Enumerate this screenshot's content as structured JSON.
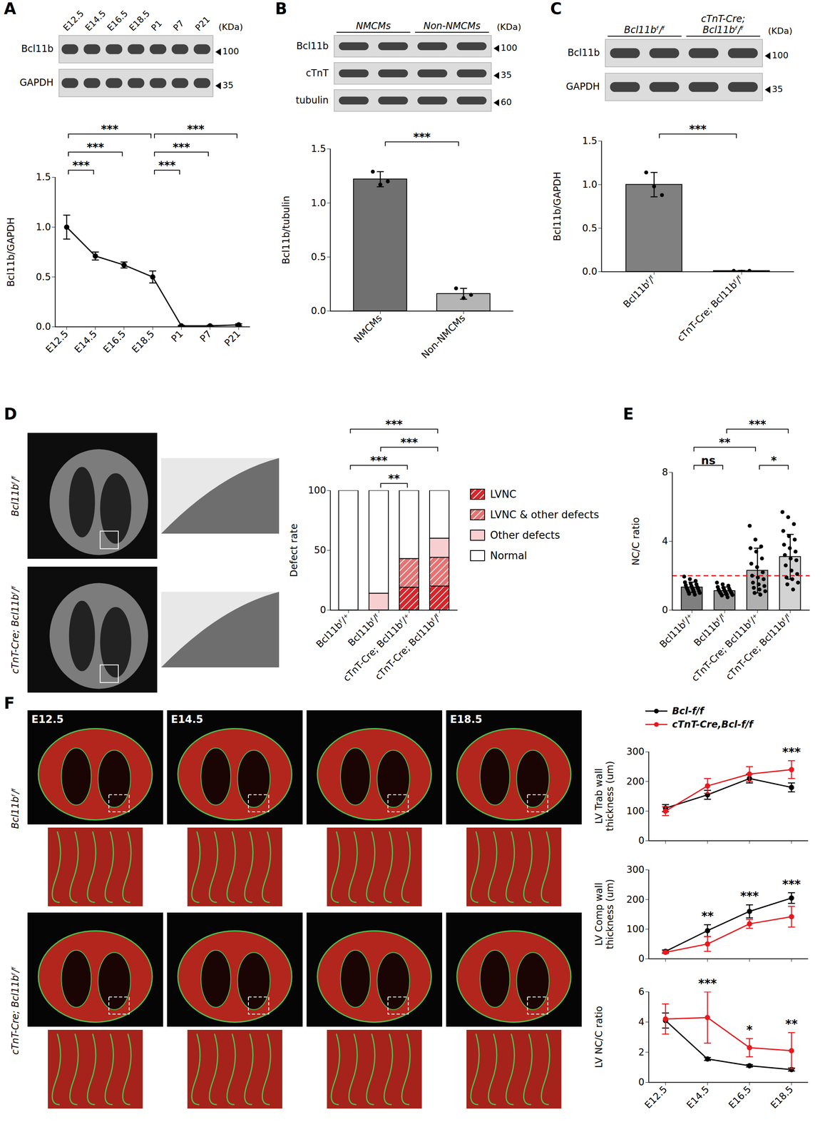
{
  "chart_data": [
    {
      "panel": "A",
      "type": "line",
      "categories": [
        "E12.5",
        "E14.5",
        "E16.5",
        "E18.5",
        "P1",
        "P7",
        "P21"
      ],
      "values": [
        1.0,
        0.71,
        0.62,
        0.5,
        0.01,
        0.01,
        0.02
      ],
      "error": [
        0.12,
        0.04,
        0.03,
        0.06,
        0.005,
        0.005,
        0.01
      ],
      "color": "#000000",
      "marker": "circle",
      "ylabel": "Bcl11b/GAPDH",
      "ylim": [
        0,
        1.5
      ],
      "yticks": [
        {
          "value": 0,
          "label": "0.0"
        },
        {
          "value": 0.5,
          "label": "0.5"
        },
        {
          "value": 1.0,
          "label": "1.0"
        },
        {
          "value": 1.5,
          "label": "1.5"
        }
      ],
      "significance": [
        {
          "from": "E12.5",
          "to": "E14.5",
          "label": "***"
        },
        {
          "from": "E12.5",
          "to": "E16.5",
          "label": "***"
        },
        {
          "from": "E12.5",
          "to": "E18.5",
          "label": "***"
        },
        {
          "from": "E18.5",
          "to": "P1",
          "label": "***"
        },
        {
          "from": "E18.5",
          "to": "P7",
          "label": "***"
        },
        {
          "from": "E18.5",
          "to": "P21",
          "label": "***"
        }
      ]
    },
    {
      "panel": "B",
      "type": "bar",
      "categories": [
        "NMCMs",
        "Non-NMCMs"
      ],
      "values": [
        1.22,
        0.16
      ],
      "error": [
        0.07,
        0.05
      ],
      "points": [
        [
          1.29,
          1.17,
          1.2
        ],
        [
          0.21,
          0.12,
          0.15
        ]
      ],
      "colors": [
        "#707070",
        "#b5b5b5"
      ],
      "ylabel": "Bcl11b/tubulin",
      "ylim": [
        0,
        1.5
      ],
      "yticks": [
        {
          "value": 0,
          "label": "0.0"
        },
        {
          "value": 0.5,
          "label": "0.5"
        },
        {
          "value": 1.0,
          "label": "1.0"
        },
        {
          "value": 1.5,
          "label": "1.5"
        }
      ],
      "significance": [
        {
          "from": "NMCMs",
          "to": "Non-NMCMs",
          "label": "***"
        }
      ]
    },
    {
      "panel": "C",
      "type": "bar",
      "categories": [
        "Bcl11bᶠ/ᶠ",
        "cTnT-Cre; Bcl11bᶠ/ᶠ"
      ],
      "values": [
        1.0,
        0.01
      ],
      "error": [
        0.14,
        0.005
      ],
      "points": [
        [
          1.14,
          0.98,
          0.88
        ],
        [
          0.01,
          0.0,
          0.01
        ]
      ],
      "colors": [
        "#808080",
        "#808080"
      ],
      "ylabel": "Bcl11b/GAPDH",
      "ylim": [
        0,
        1.5
      ],
      "yticks": [
        {
          "value": 0,
          "label": "0.0"
        },
        {
          "value": 0.5,
          "label": "0.5"
        },
        {
          "value": 1.0,
          "label": "1.0"
        },
        {
          "value": 1.5,
          "label": "1.5"
        }
      ],
      "significance": [
        {
          "from": "Bcl11bᶠ/ᶠ",
          "to": "cTnT-Cre; Bcl11bᶠ/ᶠ",
          "label": "***"
        }
      ]
    },
    {
      "panel": "D",
      "type": "bar",
      "stacked": true,
      "legend": "right",
      "categories": [
        "Bcl11bᶠ/⁺",
        "Bcl11bᶠ/ᶠ",
        "cTnT-Cre; Bcl11bᶠ/⁺",
        "cTnT-Cre; Bcl11bᶠ/ᶠ"
      ],
      "series": [
        {
          "name": "LVNC",
          "color": "#d7262b",
          "marker": "hatch",
          "values": [
            0,
            0,
            19,
            20
          ]
        },
        {
          "name": "LVNC & other defects",
          "color": "#e57373",
          "marker": "hatch",
          "values": [
            0,
            0,
            24,
            24
          ]
        },
        {
          "name": "Other defects",
          "color": "#f8cfd1",
          "values": [
            0,
            14,
            0,
            16
          ]
        },
        {
          "name": "Normal",
          "color": "#ffffff",
          "values": [
            100,
            86,
            57,
            40
          ]
        }
      ],
      "ylabel": "Defect rate",
      "ylim": [
        0,
        100
      ],
      "yticks": [
        0,
        50,
        100
      ],
      "significance": [
        {
          "from": "Bcl11bᶠ/⁺",
          "to": "cTnT-Cre; Bcl11bᶠ/⁺",
          "label": "***"
        },
        {
          "from": "Bcl11bᶠ/⁺",
          "to": "cTnT-Cre; Bcl11bᶠ/ᶠ",
          "label": "***"
        },
        {
          "from": "Bcl11bᶠ/ᶠ",
          "to": "cTnT-Cre; Bcl11bᶠ/⁺",
          "label": "**"
        },
        {
          "from": "Bcl11bᶠ/ᶠ",
          "to": "cTnT-Cre; Bcl11bᶠ/ᶠ",
          "label": "***"
        }
      ]
    },
    {
      "panel": "E",
      "type": "bar",
      "categories": [
        "Bcl11bᶠ/⁺",
        "Bcl11bᶠ/ᶠ",
        "cTnT-Cre; Bcl11bᶠ/⁺",
        "cTnT-Cre; Bcl11bᶠ/ᶠ"
      ],
      "values": [
        1.33,
        1.12,
        2.3,
        3.1
      ],
      "error": [
        0.3,
        0.22,
        1.3,
        1.3
      ],
      "points": [
        [
          1.95,
          1.8,
          1.7,
          1.62,
          1.55,
          1.5,
          1.45,
          1.4,
          1.35,
          1.3,
          1.28,
          1.25,
          1.2,
          1.18,
          1.12,
          1.08,
          1.05,
          1.0,
          0.95,
          0.9
        ],
        [
          1.6,
          1.5,
          1.42,
          1.35,
          1.3,
          1.25,
          1.2,
          1.18,
          1.15,
          1.1,
          1.08,
          1.05,
          1.02,
          1.0,
          0.98,
          0.95,
          0.9,
          0.88,
          0.85,
          0.75
        ],
        [
          4.9,
          4.1,
          3.7,
          3.6,
          3.4,
          3.0,
          2.7,
          2.5,
          2.2,
          2.0,
          1.9,
          1.8,
          1.6,
          1.5,
          1.4,
          1.3,
          1.2,
          1.1,
          1.0,
          0.9
        ],
        [
          5.7,
          5.4,
          5.0,
          4.6,
          4.3,
          4.1,
          3.8,
          3.6,
          3.4,
          3.2,
          3.0,
          2.9,
          2.6,
          2.3,
          2.1,
          1.9,
          1.8,
          1.6,
          1.5,
          1.2
        ]
      ],
      "colors": [
        "#7f7f7f",
        "#999999",
        "#b0b0b0",
        "#d3d3d3"
      ],
      "threshold": {
        "value": 2,
        "color": "#e41a1c",
        "line_style": "dashed"
      },
      "ylabel": "NC/C ratio",
      "ylim": [
        0,
        8
      ],
      "yticks": [
        0,
        4,
        8
      ],
      "significance": [
        {
          "from": "Bcl11bᶠ/⁺",
          "to": "Bcl11bᶠ/ᶠ",
          "label": "ns"
        },
        {
          "from": "Bcl11bᶠ/⁺",
          "to": "cTnT-Cre; Bcl11bᶠ/⁺",
          "label": "**"
        },
        {
          "from": "cTnT-Cre; Bcl11bᶠ/⁺",
          "to": "cTnT-Cre; Bcl11bᶠ/ᶠ",
          "label": "*"
        },
        {
          "from": "Bcl11bᶠ/ᶠ",
          "to": "cTnT-Cre; Bcl11bᶠ/ᶠ",
          "label": "***"
        }
      ]
    },
    {
      "panel": "F",
      "type": "line",
      "legend": "top",
      "tick_labels": "y",
      "categories": [
        "E12.5",
        "E14.5",
        "E16.5",
        "E18.5"
      ],
      "series": [
        {
          "name": "Bcl-f/f",
          "color": "#000000",
          "marker": "circle",
          "values": [
            110,
            155,
            210,
            180
          ],
          "error": [
            12,
            15,
            15,
            15
          ]
        },
        {
          "name": "cTnT-Cre,Bcl-f/f",
          "color": "#e8191e",
          "marker": "circle",
          "values": [
            100,
            185,
            225,
            240
          ],
          "error": [
            15,
            25,
            25,
            30
          ]
        }
      ],
      "ylabel": "LV Trab wall thickness (um)",
      "ylim": [
        0,
        300
      ],
      "yticks": [
        0,
        100,
        200,
        300
      ],
      "significance": [
        {
          "category": "E18.5",
          "label": "***"
        }
      ]
    },
    {
      "type": "line",
      "tick_labels": "y",
      "categories": [
        "E12.5",
        "E14.5",
        "E16.5",
        "E18.5"
      ],
      "series": [
        {
          "name": "Bcl-f/f",
          "color": "#000000",
          "marker": "circle",
          "values": [
            25,
            95,
            160,
            205
          ],
          "error": [
            5,
            20,
            22,
            18
          ]
        },
        {
          "name": "cTnT-Cre,Bcl-f/f",
          "color": "#e8191e",
          "marker": "circle",
          "values": [
            22,
            50,
            118,
            142
          ],
          "error": [
            4,
            25,
            15,
            35
          ]
        }
      ],
      "ylabel": "LV Comp wall thickness (um)",
      "ylim": [
        0,
        300
      ],
      "yticks": [
        0,
        100,
        200,
        300
      ],
      "significance": [
        {
          "category": "E14.5",
          "label": "**"
        },
        {
          "category": "E16.5",
          "label": "***"
        },
        {
          "category": "E18.5",
          "label": "***"
        }
      ]
    },
    {
      "type": "line",
      "categories": [
        "E12.5",
        "E14.5",
        "E16.5",
        "E18.5"
      ],
      "series": [
        {
          "name": "Bcl-f/f",
          "color": "#000000",
          "marker": "circle",
          "values": [
            4.1,
            1.55,
            1.1,
            0.85
          ],
          "error": [
            0.5,
            0.1,
            0.08,
            0.1
          ]
        },
        {
          "name": "cTnT-Cre,Bcl-f/f",
          "color": "#e8191e",
          "marker": "circle",
          "values": [
            4.2,
            4.3,
            2.3,
            2.1
          ],
          "error": [
            1.0,
            1.7,
            0.6,
            1.2
          ]
        }
      ],
      "ylabel": "LV NC/C ratio",
      "ylim": [
        0,
        6
      ],
      "yticks": [
        0,
        2,
        4,
        6
      ],
      "significance": [
        {
          "category": "E14.5",
          "label": "***"
        },
        {
          "category": "E16.5",
          "label": "*"
        },
        {
          "category": "E18.5",
          "label": "**"
        }
      ]
    }
  ],
  "figures": [
    {
      "blot": {
        "lanes": [
          "E12.5",
          "E14.5",
          "E16.5",
          "E18.5",
          "P1",
          "P7",
          "P21"
        ],
        "rows": [
          {
            "name": "Bcl11b",
            "kda": 100
          },
          {
            "name": "GAPDH",
            "kda": 35
          }
        ],
        "unit": "(KDa)"
      }
    },
    {
      "blot": {
        "groups": [
          {
            "label": "NMCMs",
            "lanes": 2
          },
          {
            "label": "Non-NMCMs",
            "lanes": 2
          }
        ],
        "rows": [
          {
            "name": "Bcl11b",
            "kda": 100
          },
          {
            "name": "cTnT",
            "kda": 35
          },
          {
            "name": "tubulin",
            "kda": 60
          }
        ],
        "unit": "(KDa)"
      }
    },
    {
      "blot": {
        "groups": [
          {
            "label": "Bcl11bᶠ/ᶠ",
            "lanes": 2
          },
          {
            "label": "cTnT-Cre; Bcl11bᶠ/ᶠ",
            "lanes": 2
          }
        ],
        "rows": [
          {
            "name": "Bcl11b",
            "kda": 100
          },
          {
            "name": "GAPDH",
            "kda": 35
          }
        ],
        "unit": "(KDa)"
      }
    },
    {
      "images": {
        "rows": [
          "Bcl11bᶠ/ᶠ",
          "cTnT-Cre; Bcl11bᶠ/ᶠ"
        ]
      }
    },
    {
      "images": {
        "columns": [
          "E12.5",
          "E14.5",
          null,
          "E18.5"
        ],
        "rows": [
          "Bcl11bᶠ/ᶠ",
          "cTnT-Cre; Bcl11bᶠ/ᶠ"
        ]
      }
    }
  ]
}
